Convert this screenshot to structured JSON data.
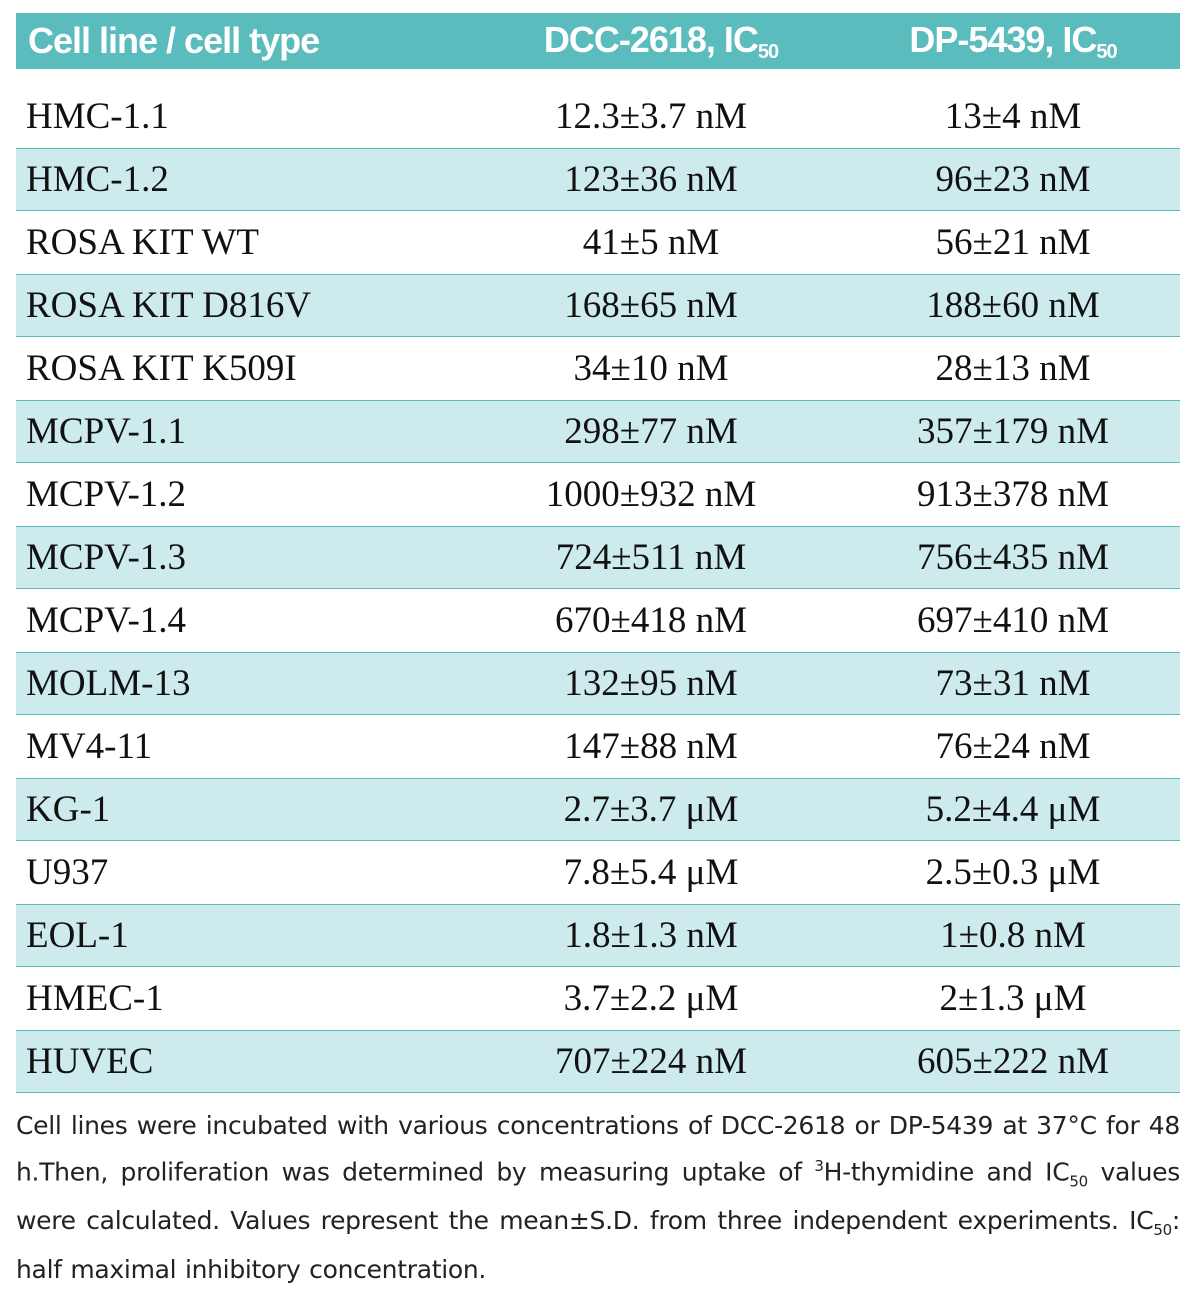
{
  "table": {
    "header": {
      "col1": "Cell line / cell type",
      "col2_prefix": "DCC-2618, IC",
      "col2_sub": "50",
      "col3_prefix": "DP-5439, IC",
      "col3_sub": "50"
    },
    "rows": [
      {
        "cell_line": "HMC-1.1",
        "dcc": "12.3±3.7 nM",
        "dp": "13±4 nM"
      },
      {
        "cell_line": "HMC-1.2",
        "dcc": "123±36 nM",
        "dp": "96±23 nM"
      },
      {
        "cell_line": "ROSA KIT WT",
        "dcc": "41±5 nM",
        "dp": "56±21 nM"
      },
      {
        "cell_line": "ROSA KIT D816V",
        "dcc": "168±65 nM",
        "dp": "188±60 nM"
      },
      {
        "cell_line": "ROSA KIT K509I",
        "dcc": "34±10 nM",
        "dp": "28±13 nM"
      },
      {
        "cell_line": "MCPV-1.1",
        "dcc": "298±77 nM",
        "dp": "357±179 nM"
      },
      {
        "cell_line": "MCPV-1.2",
        "dcc": "1000±932 nM",
        "dp": "913±378 nM"
      },
      {
        "cell_line": "MCPV-1.3",
        "dcc": "724±511 nM",
        "dp": "756±435 nM"
      },
      {
        "cell_line": "MCPV-1.4",
        "dcc": "670±418 nM",
        "dp": "697±410 nM"
      },
      {
        "cell_line": "MOLM-13",
        "dcc": "132±95 nM",
        "dp": "73±31 nM"
      },
      {
        "cell_line": "MV4-11",
        "dcc": "147±88 nM",
        "dp": "76±24 nM"
      },
      {
        "cell_line": "KG-1",
        "dcc": "2.7±3.7 μM",
        "dp": "5.2±4.4 μM"
      },
      {
        "cell_line": "U937",
        "dcc": "7.8±5.4 μM",
        "dp": "2.5±0.3 μM"
      },
      {
        "cell_line": "EOL-1",
        "dcc": "1.8±1.3 nM",
        "dp": "1±0.8 nM"
      },
      {
        "cell_line": "HMEC-1",
        "dcc": "3.7±2.2 μM",
        "dp": "2±1.3 μM"
      },
      {
        "cell_line": "HUVEC",
        "dcc": "707±224 nM",
        "dp": "605±222 nM"
      }
    ]
  },
  "footnote": {
    "part1": "Cell lines were incubated with various concentrations of DCC-2618 or DP-5439 at 37°C for 48 h.Then, proliferation was determined by measuring uptake of ",
    "sup_3": "3",
    "part2": "H-thymidine and IC",
    "sub_50a": "50",
    "part3": " values were calculated. Values represent the mean±S.D. from three independent experiments. IC",
    "sub_50b": "50",
    "part4": ": half maximal inhibitory concentration."
  },
  "colors": {
    "header_bg": "#5bbcbd",
    "shaded_row_bg": "#cdebed",
    "row_border": "#5bbcbd"
  }
}
